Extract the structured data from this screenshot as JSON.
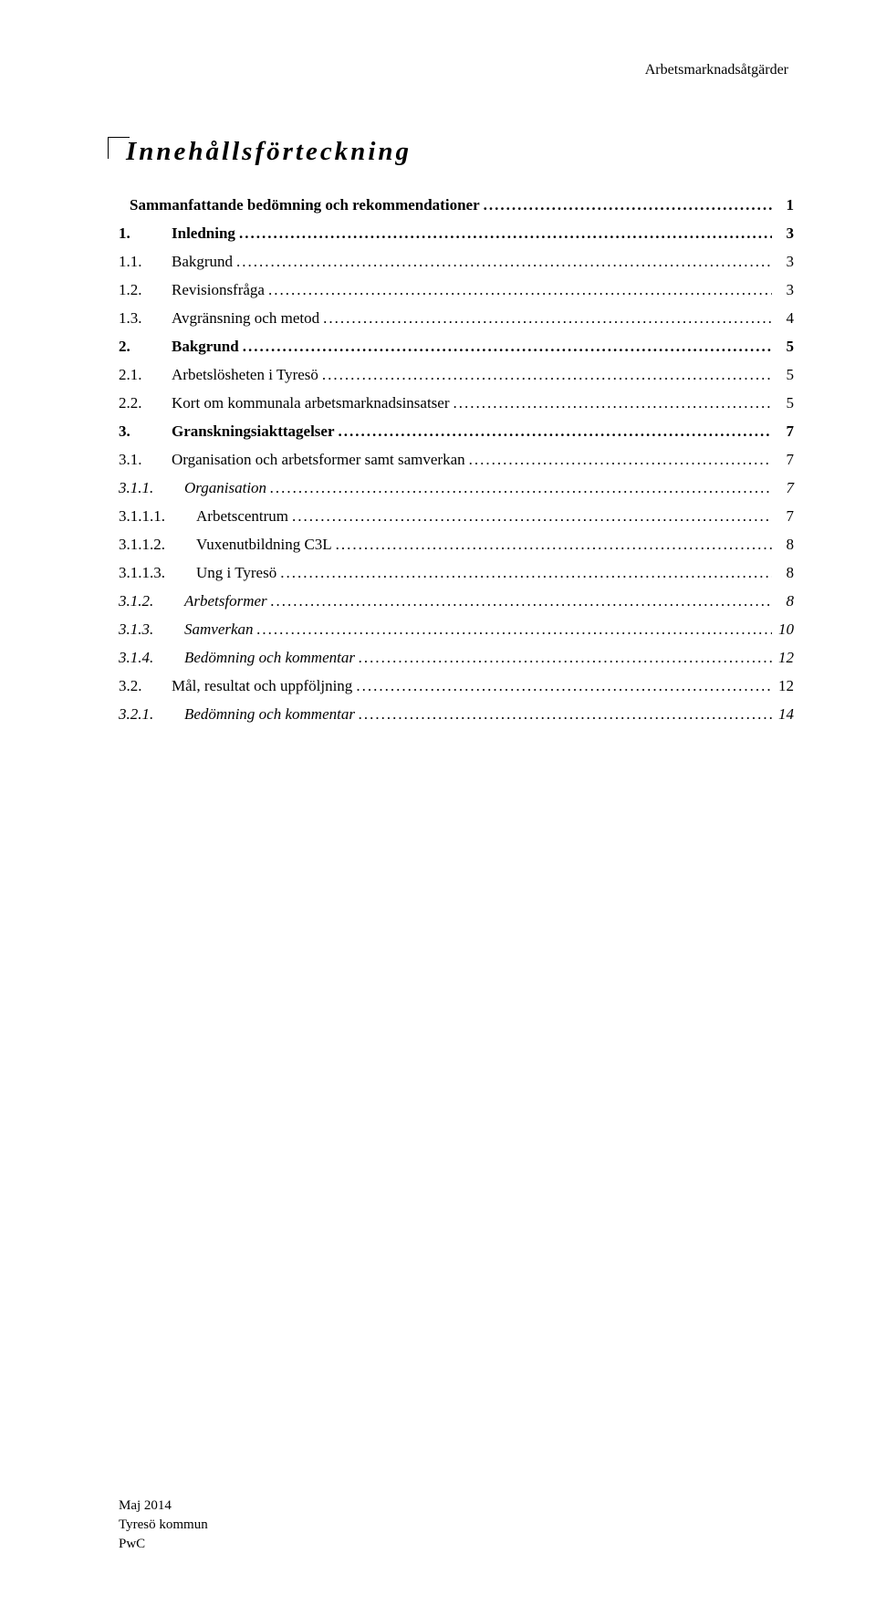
{
  "header": {
    "text": "Arbetsmarknadsåtgärder"
  },
  "toc": {
    "title": "Innehållsförteckning",
    "entries": [
      {
        "number": "",
        "numberClass": "none",
        "text": "Sammanfattande bedömning och rekommendationer",
        "page": "1",
        "bold": true,
        "italic": false
      },
      {
        "number": "1.",
        "numberClass": "w1",
        "text": "Inledning",
        "page": "3",
        "bold": true,
        "italic": false
      },
      {
        "number": "1.1.",
        "numberClass": "w2",
        "text": "Bakgrund",
        "page": "3",
        "bold": false,
        "italic": false
      },
      {
        "number": "1.2.",
        "numberClass": "w2",
        "text": "Revisionsfråga",
        "page": "3",
        "bold": false,
        "italic": false
      },
      {
        "number": "1.3.",
        "numberClass": "w2",
        "text": "Avgränsning och metod",
        "page": "4",
        "bold": false,
        "italic": false
      },
      {
        "number": "2.",
        "numberClass": "w1",
        "text": "Bakgrund",
        "page": "5",
        "bold": true,
        "italic": false
      },
      {
        "number": "2.1.",
        "numberClass": "w2",
        "text": "Arbetslösheten i Tyresö",
        "page": "5",
        "bold": false,
        "italic": false
      },
      {
        "number": "2.2.",
        "numberClass": "w2",
        "text": "Kort om kommunala arbetsmarknadsinsatser",
        "page": "5",
        "bold": false,
        "italic": false
      },
      {
        "number": "3.",
        "numberClass": "w1",
        "text": "Granskningsiakttagelser",
        "page": "7",
        "bold": true,
        "italic": false
      },
      {
        "number": "3.1.",
        "numberClass": "w2",
        "text": "Organisation och arbetsformer samt samverkan",
        "page": "7",
        "bold": false,
        "italic": false
      },
      {
        "number": "3.1.1.",
        "numberClass": "w3",
        "text": "Organisation",
        "page": "7",
        "bold": false,
        "italic": true
      },
      {
        "number": "3.1.1.1.",
        "numberClass": "w4",
        "text": "Arbetscentrum",
        "page": "7",
        "bold": false,
        "italic": false
      },
      {
        "number": "3.1.1.2.",
        "numberClass": "w4",
        "text": "Vuxenutbildning C3L",
        "page": "8",
        "bold": false,
        "italic": false
      },
      {
        "number": "3.1.1.3.",
        "numberClass": "w4",
        "text": "Ung i Tyresö",
        "page": "8",
        "bold": false,
        "italic": false
      },
      {
        "number": "3.1.2.",
        "numberClass": "w3",
        "text": "Arbetsformer",
        "page": "8",
        "bold": false,
        "italic": true
      },
      {
        "number": "3.1.3.",
        "numberClass": "w3",
        "text": "Samverkan",
        "page": "10",
        "bold": false,
        "italic": true
      },
      {
        "number": "3.1.4.",
        "numberClass": "w3",
        "text": "Bedömning och kommentar",
        "page": "12",
        "bold": false,
        "italic": true
      },
      {
        "number": "3.2.",
        "numberClass": "w2",
        "text": "Mål, resultat och uppföljning",
        "page": "12",
        "bold": false,
        "italic": false
      },
      {
        "number": "3.2.1.",
        "numberClass": "w3",
        "text": "Bedömning och kommentar",
        "page": "14",
        "bold": false,
        "italic": true
      }
    ]
  },
  "footer": {
    "line1": "Maj 2014",
    "line2": "Tyresö kommun",
    "line3": "PwC"
  }
}
